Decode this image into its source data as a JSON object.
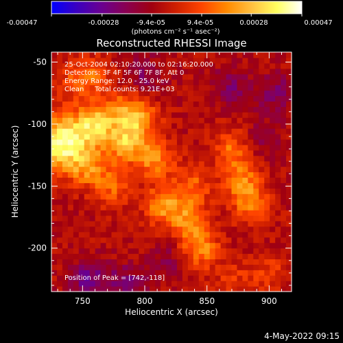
{
  "chart_data": {
    "type": "heatmap",
    "title": "Reconstructed RHESSI Image",
    "xlabel": "Heliocentric X (arcsec)",
    "ylabel": "Heliocentric Y (arcsec)",
    "xlim": [
      725,
      918
    ],
    "ylim": [
      -235,
      -42
    ],
    "x_ticks": [
      750,
      800,
      850,
      900
    ],
    "y_ticks": [
      -50,
      -100,
      -150,
      -200
    ],
    "colorbar": {
      "min": -0.00047,
      "max": 0.00047,
      "tick_values": [
        -0.00047,
        -0.00028,
        -9.4e-05,
        9.4e-05,
        0.00028,
        0.00047
      ],
      "tick_labels": [
        "-0.00047",
        "-0.00028",
        "-9.4e-05",
        "9.4e-05",
        "0.00028",
        "0.00047"
      ],
      "unit_label": "(photons cm⁻² s⁻¹ asec⁻²)",
      "colormap": [
        "#0000ff",
        "#3a00c0",
        "#6a0090",
        "#8a0050",
        "#a00010",
        "#d02000",
        "#ff4500",
        "#ff8a00",
        "#ffc040",
        "#ffff60",
        "#ffffff"
      ]
    },
    "annotations": [
      "25-Oct-2004 02:10:20.000 to 02:16:20.000",
      "Detectors: 3F 4F 5F 6F 7F 8F, Att 0",
      "Energy Range: 12.0 - 25.0 keV",
      "Clean     Total counts: 9.21E+03"
    ],
    "peak_label": "Position of Peak = [742,-118]",
    "peak": [
      742,
      -118
    ],
    "bright_features": [
      {
        "x": 733,
        "y": -115,
        "value": 0.00047
      },
      {
        "x": 760,
        "y": -100,
        "value": 0.00033
      },
      {
        "x": 785,
        "y": -115,
        "value": 0.0003
      },
      {
        "x": 795,
        "y": -95,
        "value": 0.00027
      },
      {
        "x": 808,
        "y": -128,
        "value": 0.00024
      },
      {
        "x": 815,
        "y": -165,
        "value": 0.00025
      },
      {
        "x": 835,
        "y": -178,
        "value": 0.00022
      },
      {
        "x": 845,
        "y": -200,
        "value": 0.00024
      },
      {
        "x": 838,
        "y": -150,
        "value": 0.00018
      },
      {
        "x": 870,
        "y": -120,
        "value": 0.0002
      },
      {
        "x": 878,
        "y": -145,
        "value": 0.00022
      },
      {
        "x": 885,
        "y": -165,
        "value": 0.0002
      },
      {
        "x": 775,
        "y": -150,
        "value": 0.00018
      },
      {
        "x": 755,
        "y": -135,
        "value": 0.0002
      },
      {
        "x": 780,
        "y": -88,
        "value": 0.00016
      },
      {
        "x": 745,
        "y": -62,
        "value": 0.00014
      },
      {
        "x": 760,
        "y": -60,
        "value": 0.00012
      },
      {
        "x": 900,
        "y": -220,
        "value": 0.00012
      },
      {
        "x": 870,
        "y": -225,
        "value": 0.0001
      }
    ],
    "dim_features": [
      {
        "x": 800,
        "y": -60,
        "value": -0.00012
      },
      {
        "x": 870,
        "y": -70,
        "value": -0.00014
      },
      {
        "x": 755,
        "y": -225,
        "value": -0.0002
      },
      {
        "x": 785,
        "y": -228,
        "value": -0.00015
      },
      {
        "x": 905,
        "y": -75,
        "value": -0.00015
      },
      {
        "x": 893,
        "y": -112,
        "value": -0.0001
      },
      {
        "x": 820,
        "y": -210,
        "value": -0.0001
      }
    ]
  },
  "footer": {
    "date": "4-May-2022 09:15"
  }
}
